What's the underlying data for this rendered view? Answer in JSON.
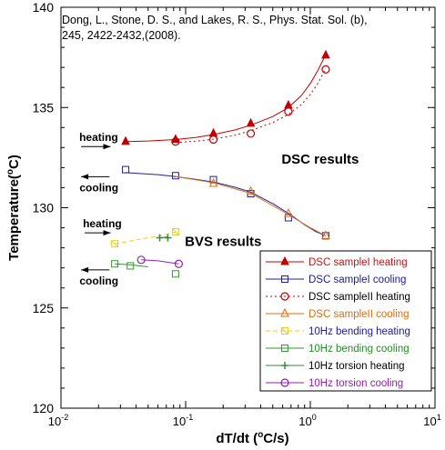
{
  "chart_data": {
    "type": "scatter",
    "xscale": "log",
    "xlim": [
      0.01,
      10
    ],
    "ylim": [
      120,
      140
    ],
    "grid": false,
    "xlabel": "dT/dt (",
    "xlabel_sup": "o",
    "xlabel_end": "C/s)",
    "ylabel": "Temperature(",
    "ylabel_sup": "o",
    "ylabel_end": "C)",
    "x_ticks": [
      {
        "value": 0.01,
        "base": "10",
        "exp": "-2"
      },
      {
        "value": 0.1,
        "base": "10",
        "exp": "-1"
      },
      {
        "value": 1,
        "base": "10",
        "exp": "0"
      },
      {
        "value": 10,
        "base": "10",
        "exp": "1"
      }
    ],
    "y_ticks": [
      120,
      125,
      130,
      135,
      140
    ],
    "citation_line1": "Dong, L., Stone, D. S., and Lakes, R. S., Phys. Stat. Sol. (b),",
    "citation_line2": "245, 2422-2432,(2008).",
    "annotations": [
      {
        "text": "DSC results",
        "x": 1.2,
        "y": 132.2
      },
      {
        "text": "BVS results",
        "x": 0.2,
        "y": 128.1
      }
    ],
    "arrows": [
      {
        "text": "heating",
        "dir": "right",
        "x_from": 0.0145,
        "x_to": 0.025,
        "y": 133.05
      },
      {
        "text": "cooling",
        "dir": "left",
        "x_from": 0.0245,
        "x_to": 0.0145,
        "y": 131.55
      },
      {
        "text": "heating",
        "dir": "right",
        "x_from": 0.0155,
        "x_to": 0.025,
        "y": 128.75
      },
      {
        "text": "cooling",
        "dir": "left",
        "x_from": 0.0245,
        "x_to": 0.0145,
        "y": 126.9
      }
    ],
    "series": [
      {
        "name": "DSC sampleI  heating",
        "color": "#c00000",
        "marker": "triangle",
        "fill": true,
        "line": "solid",
        "points": [
          [
            0.033,
            133.3
          ],
          [
            0.083,
            133.4
          ],
          [
            0.167,
            133.7
          ],
          [
            0.333,
            134.2
          ],
          [
            0.667,
            135.1
          ],
          [
            1.33,
            137.6
          ]
        ],
        "fit": [
          [
            0.033,
            133.3
          ],
          [
            0.05,
            133.33
          ],
          [
            0.083,
            133.4
          ],
          [
            0.12,
            133.5
          ],
          [
            0.167,
            133.65
          ],
          [
            0.25,
            133.88
          ],
          [
            0.333,
            134.12
          ],
          [
            0.5,
            134.55
          ],
          [
            0.667,
            135.0
          ],
          [
            0.85,
            135.6
          ],
          [
            1.0,
            136.2
          ],
          [
            1.15,
            136.85
          ],
          [
            1.33,
            137.65
          ]
        ]
      },
      {
        "name": "DSC sampleI  cooling",
        "color": "#1f1fa0",
        "marker": "square",
        "fill": false,
        "line": "solid",
        "points": [
          [
            0.033,
            131.9
          ],
          [
            0.083,
            131.6
          ],
          [
            0.167,
            131.4
          ],
          [
            0.333,
            130.7
          ],
          [
            0.667,
            129.5
          ],
          [
            1.33,
            128.6
          ]
        ],
        "fit": [
          [
            0.033,
            131.75
          ],
          [
            0.06,
            131.65
          ],
          [
            0.083,
            131.55
          ],
          [
            0.12,
            131.42
          ],
          [
            0.167,
            131.28
          ],
          [
            0.25,
            131.02
          ],
          [
            0.333,
            130.78
          ],
          [
            0.5,
            130.2
          ],
          [
            0.667,
            129.72
          ],
          [
            0.9,
            129.15
          ],
          [
            1.1,
            128.82
          ],
          [
            1.33,
            128.6
          ]
        ]
      },
      {
        "name": "DSC sampleII  heating",
        "color": "#c00000",
        "marker": "circle",
        "fill": false,
        "line": "dotted",
        "points": [
          [
            0.083,
            133.3
          ],
          [
            0.167,
            133.4
          ],
          [
            0.333,
            133.7
          ],
          [
            0.667,
            134.8
          ],
          [
            1.33,
            136.9
          ]
        ],
        "fit": [
          [
            0.083,
            133.25
          ],
          [
            0.12,
            133.32
          ],
          [
            0.167,
            133.42
          ],
          [
            0.25,
            133.62
          ],
          [
            0.333,
            133.85
          ],
          [
            0.5,
            134.25
          ],
          [
            0.667,
            134.65
          ],
          [
            0.85,
            135.15
          ],
          [
            1.0,
            135.65
          ],
          [
            1.15,
            136.2
          ],
          [
            1.33,
            136.95
          ]
        ]
      },
      {
        "name": "DSC sampleII  cooling",
        "color": "#e06c10",
        "marker": "triangle",
        "fill": false,
        "line": "solid",
        "points": [
          [
            0.167,
            131.2
          ],
          [
            0.333,
            130.8
          ],
          [
            0.667,
            129.7
          ],
          [
            1.33,
            128.6
          ]
        ],
        "fit": [
          [
            0.083,
            131.55
          ],
          [
            0.167,
            131.25
          ],
          [
            0.333,
            130.72
          ],
          [
            0.667,
            129.66
          ],
          [
            1.0,
            129.0
          ],
          [
            1.33,
            128.6
          ]
        ]
      },
      {
        "name": "10Hz bending heating",
        "color": "#e6cf1e",
        "marker": "square-x",
        "fill": false,
        "line": "dashed",
        "points": [
          [
            0.027,
            128.2
          ],
          [
            0.083,
            128.8
          ]
        ],
        "fit": [
          [
            0.027,
            128.2
          ],
          [
            0.045,
            128.45
          ],
          [
            0.065,
            128.62
          ],
          [
            0.083,
            128.78
          ]
        ]
      },
      {
        "name": "10Hz bending cooling",
        "color": "#2f9a2f",
        "marker": "square",
        "fill": false,
        "line": "solid",
        "points": [
          [
            0.027,
            127.2
          ],
          [
            0.036,
            127.1
          ],
          [
            0.083,
            126.7
          ]
        ],
        "fit": [
          [
            0.027,
            127.2
          ],
          [
            0.036,
            127.15
          ],
          [
            0.05,
            127.05
          ]
        ]
      },
      {
        "name": "10Hz torsion heating",
        "color": "#3a8a3a",
        "marker": "plus",
        "fill": false,
        "line": "solid",
        "points": [
          [
            0.062,
            128.5
          ],
          [
            0.072,
            128.5
          ]
        ],
        "fit": [
          [
            0.062,
            128.5
          ],
          [
            0.072,
            128.55
          ]
        ]
      },
      {
        "name": "10Hz torsion cooling",
        "color": "#9020b0",
        "marker": "circle",
        "fill": false,
        "line": "solid",
        "points": [
          [
            0.044,
            127.4
          ],
          [
            0.088,
            127.2
          ]
        ],
        "fit": [
          [
            0.044,
            127.4
          ],
          [
            0.06,
            127.35
          ],
          [
            0.088,
            127.2
          ]
        ]
      }
    ],
    "legend": {
      "placement": "bottom-right",
      "entries": [
        {
          "label": "DSC sampleI  heating",
          "color": "#d01010"
        },
        {
          "label": "DSC sampleI  cooling",
          "color": "#1a1aa0"
        },
        {
          "label": "DSC sampleII  heating",
          "color": "#000000"
        },
        {
          "label": "DSC sampleII  cooling",
          "color": "#e06c10"
        },
        {
          "label": "10Hz bending heating",
          "color": "#1a1aa0"
        },
        {
          "label": "10Hz bending cooling",
          "color": "#2a8a2a"
        },
        {
          "label": "10Hz torsion heating",
          "color": "#000000"
        },
        {
          "label": "10Hz torsion cooling",
          "color": "#9020b0"
        }
      ]
    }
  }
}
